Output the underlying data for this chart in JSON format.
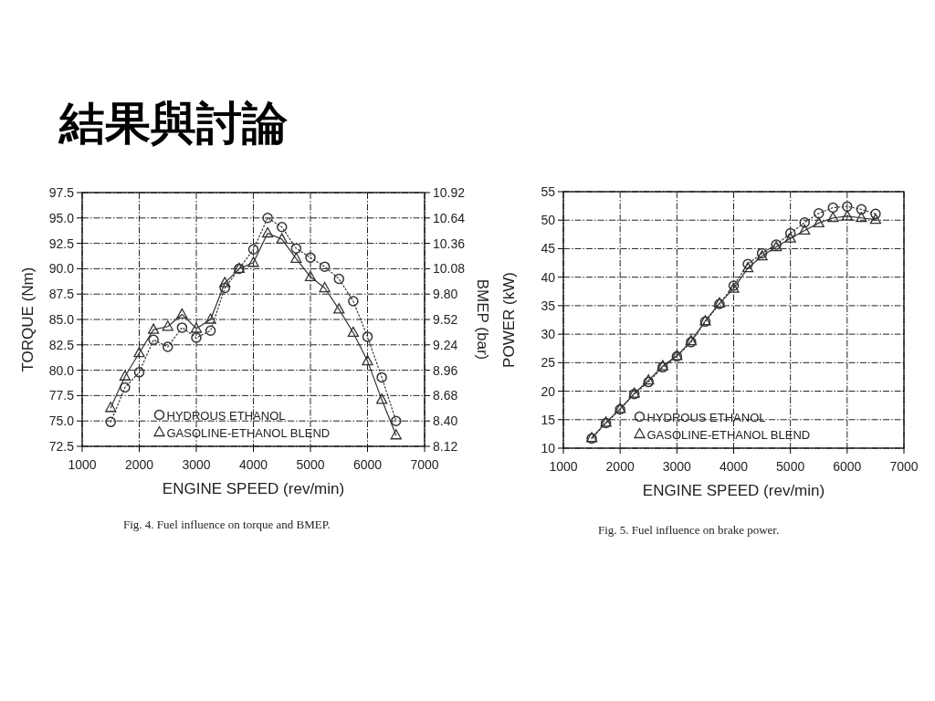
{
  "chart_data": [
    {
      "type": "other",
      "title": "結果與討論"
    },
    {
      "type": "line",
      "xlabel": "ENGINE SPEED (rev/min)",
      "ylabel": "TORQUE (Nm)",
      "y2label": "BMEP (bar)",
      "x": [
        1500,
        1750,
        2000,
        2250,
        2500,
        2750,
        3000,
        3250,
        3500,
        3750,
        4000,
        4250,
        4500,
        4750,
        5000,
        5250,
        5500,
        5750,
        6000,
        6250,
        6500
      ],
      "series": [
        {
          "name": "HYDROUS ETHANOL",
          "color": "#333333",
          "marker": "circle",
          "line_style": "dotted",
          "values": [
            74.9,
            78.3,
            79.8,
            83.0,
            82.3,
            84.2,
            83.2,
            83.9,
            88.1,
            90.0,
            91.9,
            95.0,
            94.1,
            92.0,
            91.1,
            90.2,
            89.0,
            86.8,
            83.3,
            79.3,
            75.0
          ]
        },
        {
          "name": "GASOLINE-ETHANOL BLEND",
          "color": "#333333",
          "marker": "triangle",
          "line_style": "solid",
          "values": [
            76.3,
            79.4,
            81.7,
            84.0,
            84.3,
            85.5,
            84.1,
            85.0,
            88.6,
            90.0,
            90.6,
            93.5,
            92.9,
            91.0,
            89.2,
            88.1,
            86.0,
            83.7,
            80.9,
            77.1,
            73.6
          ]
        }
      ],
      "xlim": [
        1000,
        7000
      ],
      "xticks": [
        1000,
        2000,
        3000,
        4000,
        5000,
        6000,
        7000
      ],
      "ylim": [
        72.5,
        97.5
      ],
      "yticks": [
        72.5,
        {
          "value": 75,
          "label": "75.0"
        },
        77.5,
        {
          "value": 80,
          "label": "80.0"
        },
        82.5,
        {
          "value": 85,
          "label": "85.0"
        },
        87.5,
        {
          "value": 90,
          "label": "90.0"
        },
        92.5,
        {
          "value": 95,
          "label": "95.0"
        },
        97.5
      ],
      "y2lim": [
        8.12,
        10.92
      ],
      "y2ticks": [
        8.12,
        {
          "value": 8.4,
          "label": "8.40"
        },
        8.68,
        8.96,
        9.24,
        9.52,
        {
          "value": 9.8,
          "label": "9.80"
        },
        {
          "value": 10.08,
          "label": "10.08"
        },
        10.36,
        10.64,
        10.92
      ],
      "grid": true,
      "legend": "bottom",
      "annotations": [
        "Fig. 4. Fuel influence on torque and BMEP."
      ]
    },
    {
      "type": "line",
      "xlabel": "ENGINE SPEED (rev/min)",
      "ylabel": "POWER (kW)",
      "x": [
        1500,
        1750,
        2000,
        2250,
        2500,
        2750,
        3000,
        3250,
        3500,
        3750,
        4000,
        4250,
        4500,
        4750,
        5000,
        5250,
        5500,
        5750,
        6000,
        6250,
        6500
      ],
      "series": [
        {
          "name": "HYDROUS ETHANOL",
          "color": "#333333",
          "marker": "circle",
          "line_style": "dotted",
          "values": [
            11.7,
            14.4,
            16.8,
            19.5,
            21.6,
            24.2,
            26.1,
            28.6,
            32.2,
            35.3,
            38.5,
            42.3,
            44.2,
            45.7,
            47.7,
            49.6,
            51.2,
            52.2,
            52.4,
            51.9,
            51.1
          ]
        },
        {
          "name": "GASOLINE-ETHANOL BLEND",
          "color": "#333333",
          "marker": "triangle",
          "line_style": "solid",
          "values": [
            11.8,
            14.5,
            16.9,
            19.6,
            21.9,
            24.4,
            26.2,
            28.8,
            32.3,
            35.4,
            38.0,
            41.6,
            43.7,
            45.3,
            46.8,
            48.2,
            49.5,
            50.4,
            50.7,
            50.4,
            50.1
          ]
        }
      ],
      "xlim": [
        1000,
        7000
      ],
      "xticks": [
        1000,
        2000,
        3000,
        4000,
        5000,
        6000,
        7000
      ],
      "ylim": [
        10,
        55
      ],
      "yticks": [
        10,
        15,
        20,
        25,
        30,
        35,
        40,
        45,
        50,
        55
      ],
      "grid": true,
      "legend": "bottom",
      "annotations": [
        "Fig. 5. Fuel influence on brake power."
      ]
    }
  ]
}
